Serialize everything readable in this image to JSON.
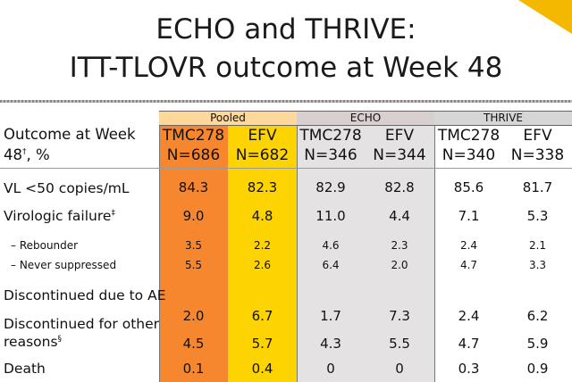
{
  "title_line1": "ECHO and THRIVE:",
  "title_line2": "ITT-TLOVR outcome at Week 48",
  "groups": [
    "Pooled",
    "ECHO",
    "THRIVE"
  ],
  "row_header": {
    "line1": "Outcome at Week",
    "line2": "48",
    "sup": "†",
    "suffix": ", %"
  },
  "columns": [
    {
      "drug": "TMC278",
      "n": "N=686"
    },
    {
      "drug": "EFV",
      "n": "N=682"
    },
    {
      "drug": "TMC278",
      "n": "N=346"
    },
    {
      "drug": "EFV",
      "n": "N=344"
    },
    {
      "drug": "TMC278",
      "n": "N=340"
    },
    {
      "drug": "EFV",
      "n": "N=338"
    }
  ],
  "rows": [
    {
      "label": "VL <50 copies/mL",
      "sup": "",
      "values": [
        "84.3",
        "82.3",
        "82.9",
        "82.8",
        "85.6",
        "81.7"
      ]
    },
    {
      "label": "Virologic failure",
      "sup": "‡",
      "values": [
        "9.0",
        "4.8",
        "11.0",
        "4.4",
        "7.1",
        "5.3"
      ]
    },
    {
      "label": "– Rebounder",
      "sup": "",
      "values": [
        "3.5",
        "2.2",
        "4.6",
        "2.3",
        "2.4",
        "2.1"
      ]
    },
    {
      "label": "– Never suppressed",
      "sup": "",
      "values": [
        "5.5",
        "2.6",
        "6.4",
        "2.0",
        "4.7",
        "3.3"
      ]
    },
    {
      "label": "Discontinued due to AE",
      "sup": "",
      "values": [
        "2.0",
        "6.7",
        "1.7",
        "7.3",
        "2.4",
        "6.2"
      ]
    },
    {
      "label": "Discontinued for other",
      "label2": "reasons",
      "sup": "§",
      "values": [
        "4.5",
        "5.7",
        "4.3",
        "5.5",
        "4.7",
        "5.9"
      ]
    },
    {
      "label": "Death",
      "sup": "",
      "values": [
        "0.1",
        "0.4",
        "0",
        "0",
        "0.3",
        "0.9"
      ]
    }
  ],
  "colors": {
    "pooled_tmc": "#f7872e",
    "pooled_efv": "#fdd400",
    "echo_bg": "#e4e2e2",
    "accent": "#f5b800"
  }
}
